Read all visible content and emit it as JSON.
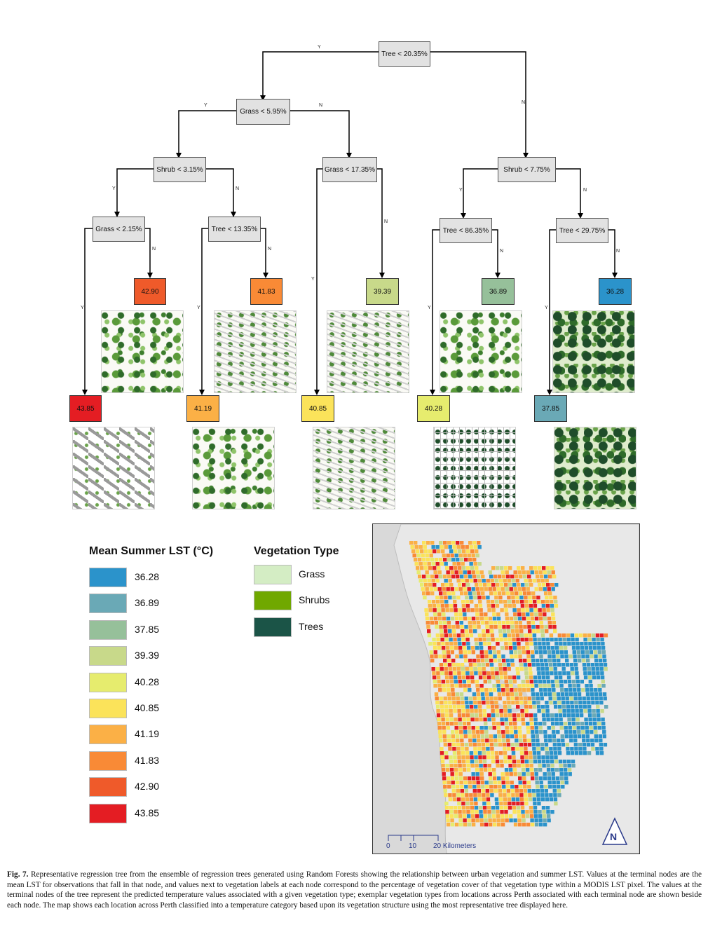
{
  "tree": {
    "splits": {
      "root": "Tree < 20.35%",
      "grass_595": "Grass < 5.95%",
      "shrub_775": "Shrub < 7.75%",
      "shrub_315": "Shrub < 3.15%",
      "grass_1735": "Grass < 17.35%",
      "grass_215": "Grass < 2.15%",
      "tree_1335": "Tree < 13.35%",
      "tree_8635": "Tree < 86.35%",
      "tree_2975": "Tree < 29.75%"
    },
    "leaves": {
      "l_4290": "42.90",
      "l_4183": "41.83",
      "l_3939": "39.39",
      "l_3689": "36.89",
      "l_3628": "36.28",
      "l_4385": "43.85",
      "l_4119": "41.19",
      "l_4085": "40.85",
      "l_4028": "40.28",
      "l_3785": "37.85"
    },
    "edge_labels": {
      "yes": "Y",
      "no": "N"
    }
  },
  "legend_lst": {
    "title": "Mean Summer LST (°C)",
    "items": [
      {
        "label": "36.28",
        "color": "#2b93cb"
      },
      {
        "label": "36.89",
        "color": "#6aa9b6"
      },
      {
        "label": "37.85",
        "color": "#96c09a"
      },
      {
        "label": "39.39",
        "color": "#c8d98a"
      },
      {
        "label": "40.28",
        "color": "#e6ec6e"
      },
      {
        "label": "40.85",
        "color": "#fbe35a"
      },
      {
        "label": "41.19",
        "color": "#fbb046"
      },
      {
        "label": "41.83",
        "color": "#f98a36"
      },
      {
        "label": "42.90",
        "color": "#ef5a2a"
      },
      {
        "label": "43.85",
        "color": "#e41d23"
      }
    ]
  },
  "legend_veg": {
    "title": "Vegetation Type",
    "items": [
      {
        "label": "Grass",
        "color": "#d4edc4"
      },
      {
        "label": "Shrubs",
        "color": "#70a800"
      },
      {
        "label": "Trees",
        "color": "#1b5447"
      }
    ]
  },
  "map": {
    "scale_labels": [
      "0",
      "10",
      "20 Kilometers"
    ],
    "north_arrow_letter": "N"
  },
  "caption": {
    "label": "Fig. 7.",
    "text": "Representative regression tree from the ensemble of regression trees generated using Random Forests showing the relationship between urban vegetation and summer LST. Values at the terminal nodes are the mean LST for observations that fall in that node, and values next to vegetation labels at each node correspond to the percentage of vegetation cover of that vegetation type within a MODIS LST pixel. The values at the terminal nodes of the tree represent the predicted temperature values associated with a given vegetation type; exemplar vegetation types from locations across Perth associated with each terminal node are shown beside each node. The map shows each location across Perth classified into a temperature category based upon its vegetation structure using the most representative tree displayed here."
  }
}
